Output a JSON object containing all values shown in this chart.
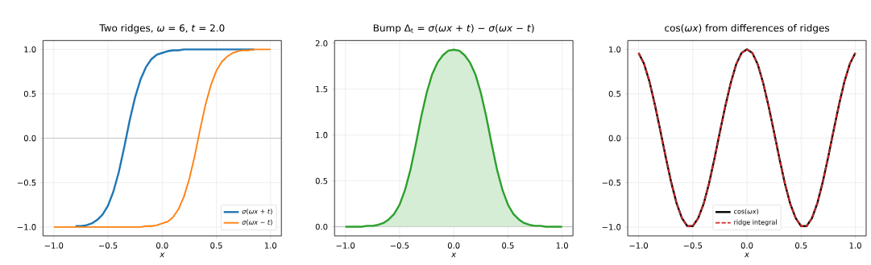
{
  "chart_data": [
    {
      "type": "line",
      "title": "Two ridges, *ω* = 6, *t* = 2.0",
      "xlabel": "x",
      "x": [
        -1.0,
        -0.95,
        -0.9,
        -0.85,
        -0.8,
        -0.75,
        -0.7,
        -0.65,
        -0.6,
        -0.55,
        -0.5,
        -0.45,
        -0.4,
        -0.35,
        -0.3,
        -0.25,
        -0.2,
        -0.15,
        -0.1,
        -0.05,
        0.0,
        0.05,
        0.1,
        0.15,
        0.2,
        0.25,
        0.3,
        0.35,
        0.4,
        0.45,
        0.5,
        0.55,
        0.6,
        0.65,
        0.7,
        0.75,
        0.8,
        0.85,
        0.9,
        0.95,
        1.0
      ],
      "series": [
        {
          "name": "*σ*(*ωx* + *t*)",
          "color": "#1f77b4",
          "values": [
            null,
            null,
            null,
            null,
            -0.99,
            -0.99,
            -0.98,
            -0.96,
            -0.92,
            -0.86,
            -0.76,
            -0.6,
            -0.38,
            -0.1,
            0.2,
            0.46,
            0.66,
            0.8,
            0.89,
            0.94,
            0.96,
            0.98,
            0.99,
            0.99,
            1.0,
            1.0,
            1.0,
            1.0,
            1.0,
            1.0,
            1.0,
            1.0,
            1.0,
            1.0,
            1.0,
            1.0,
            1.0,
            1.0,
            null,
            null,
            null
          ]
        },
        {
          "name": "*σ*(*ωx* − *t*)",
          "color": "#ff7f0e",
          "values": [
            -1.0,
            -1.0,
            -1.0,
            -1.0,
            -1.0,
            -1.0,
            -1.0,
            -1.0,
            -1.0,
            -1.0,
            -1.0,
            -1.0,
            -1.0,
            -1.0,
            -1.0,
            -1.0,
            -1.0,
            -0.99,
            -0.99,
            -0.98,
            -0.96,
            -0.94,
            -0.89,
            -0.8,
            -0.66,
            -0.46,
            -0.2,
            0.1,
            0.38,
            0.6,
            0.76,
            0.86,
            0.92,
            0.96,
            0.98,
            0.99,
            0.99,
            1.0,
            1.0,
            1.0,
            1.0
          ]
        }
      ],
      "xlim": [
        -1.1,
        1.1
      ],
      "ylim": [
        -1.1,
        1.1
      ],
      "xticks": [
        {
          "value": -1,
          "label": "−1.0"
        },
        {
          "value": -0.5,
          "label": "−0.5"
        },
        {
          "value": 0,
          "label": "0.0"
        },
        {
          "value": 0.5,
          "label": "0.5"
        },
        {
          "value": 1,
          "label": "1.0"
        }
      ],
      "yticks": [
        {
          "value": -1,
          "label": "−1.0"
        },
        {
          "value": -0.5,
          "label": "−0.5"
        },
        {
          "value": 0,
          "label": "0.0"
        },
        {
          "value": 0.5,
          "label": "0.5"
        },
        {
          "value": 1,
          "label": "1.0"
        }
      ],
      "ref_lines": [
        {
          "axis": "y",
          "value": 0,
          "color": "#999999"
        }
      ],
      "grid": true,
      "legend": "bottom right"
    },
    {
      "type": "area",
      "title": "Bump Δ$_{t}$ = *σ*(*ωx* + *t*) − *σ*(*ωx* − *t*)",
      "xlabel": "x",
      "x": [
        -1.0,
        -0.95,
        -0.9,
        -0.85,
        -0.8,
        -0.75,
        -0.7,
        -0.65,
        -0.6,
        -0.55,
        -0.5,
        -0.45,
        -0.4,
        -0.35,
        -0.3,
        -0.25,
        -0.2,
        -0.15,
        -0.1,
        -0.05,
        0.0,
        0.05,
        0.1,
        0.15,
        0.2,
        0.25,
        0.3,
        0.35,
        0.4,
        0.45,
        0.5,
        0.55,
        0.6,
        0.65,
        0.7,
        0.75,
        0.8,
        0.85,
        0.9,
        0.95,
        1.0
      ],
      "series": [
        {
          "color": "#2ca02c",
          "values": [
            0.0,
            0.0,
            0.0,
            0.0,
            0.01,
            0.01,
            0.02,
            0.04,
            0.08,
            0.14,
            0.24,
            0.4,
            0.62,
            0.9,
            1.2,
            1.46,
            1.66,
            1.79,
            1.87,
            1.92,
            1.93,
            1.92,
            1.87,
            1.79,
            1.66,
            1.46,
            1.2,
            0.9,
            0.62,
            0.4,
            0.24,
            0.14,
            0.08,
            0.04,
            0.02,
            0.01,
            0.01,
            0.0,
            0.0,
            0.0,
            0.0
          ]
        }
      ],
      "xlim": [
        -1.1,
        1.1
      ],
      "ylim": [
        -0.1,
        2.03
      ],
      "xticks": [
        {
          "value": -1,
          "label": "−1.0"
        },
        {
          "value": -0.5,
          "label": "−0.5"
        },
        {
          "value": 0,
          "label": "0.0"
        },
        {
          "value": 0.5,
          "label": "0.5"
        },
        {
          "value": 1,
          "label": "1.0"
        }
      ],
      "yticks": [
        {
          "value": 0,
          "label": "0.0"
        },
        {
          "value": 0.5,
          "label": "0.5"
        },
        {
          "value": 1,
          "label": "1.0"
        },
        {
          "value": 1.5,
          "label": "1.5"
        },
        {
          "value": 2,
          "label": "2.0"
        }
      ],
      "ref_lines": [
        {
          "axis": "y",
          "value": 0,
          "color": "#999999"
        }
      ],
      "grid": true
    },
    {
      "type": "line",
      "title": "cos(*ωx*) from differences of ridges",
      "xlabel": "x",
      "x": [
        -1.0,
        -0.95,
        -0.9,
        -0.85,
        -0.8,
        -0.75,
        -0.7,
        -0.65,
        -0.6,
        -0.55,
        -0.5,
        -0.45,
        -0.4,
        -0.35,
        -0.3,
        -0.25,
        -0.2,
        -0.15,
        -0.1,
        -0.05,
        0.0,
        0.05,
        0.1,
        0.15,
        0.2,
        0.25,
        0.3,
        0.35,
        0.4,
        0.45,
        0.5,
        0.55,
        0.6,
        0.65,
        0.7,
        0.75,
        0.8,
        0.85,
        0.9,
        0.95,
        1.0
      ],
      "series": [
        {
          "name": "cos(*ωx*)",
          "color": "#000000",
          "values": [
            0.96,
            0.84,
            0.64,
            0.38,
            0.09,
            -0.21,
            -0.49,
            -0.73,
            -0.9,
            -0.99,
            -0.99,
            -0.9,
            -0.74,
            -0.51,
            -0.23,
            0.07,
            0.36,
            0.62,
            0.83,
            0.96,
            1.0,
            0.96,
            0.83,
            0.62,
            0.36,
            0.07,
            -0.23,
            -0.51,
            -0.74,
            -0.9,
            -0.99,
            -0.99,
            -0.9,
            -0.73,
            -0.49,
            -0.21,
            0.09,
            0.38,
            0.64,
            0.84,
            0.96
          ]
        },
        {
          "name": "ridge integral",
          "color": "#d62728",
          "line_style": "dashed",
          "values": [
            0.96,
            0.84,
            0.64,
            0.38,
            0.09,
            -0.21,
            -0.49,
            -0.73,
            -0.9,
            -0.99,
            -0.99,
            -0.9,
            -0.74,
            -0.51,
            -0.23,
            0.07,
            0.36,
            0.62,
            0.83,
            0.96,
            1.0,
            0.96,
            0.83,
            0.62,
            0.36,
            0.07,
            -0.23,
            -0.51,
            -0.74,
            -0.9,
            -0.99,
            -0.99,
            -0.9,
            -0.73,
            -0.49,
            -0.21,
            0.09,
            0.38,
            0.64,
            0.84,
            0.96
          ]
        }
      ],
      "xlim": [
        -1.1,
        1.1
      ],
      "ylim": [
        -1.1,
        1.1
      ],
      "xticks": [
        {
          "value": -1,
          "label": "−1.0"
        },
        {
          "value": -0.5,
          "label": "−0.5"
        },
        {
          "value": 0,
          "label": "0.0"
        },
        {
          "value": 0.5,
          "label": "0.5"
        },
        {
          "value": 1,
          "label": "1.0"
        }
      ],
      "yticks": [
        {
          "value": -1,
          "label": "−1.0"
        },
        {
          "value": -0.5,
          "label": "−0.5"
        },
        {
          "value": 0,
          "label": "0.0"
        },
        {
          "value": 0.5,
          "label": "0.5"
        },
        {
          "value": 1,
          "label": "1.0"
        }
      ],
      "grid": true,
      "legend": "bottom"
    }
  ]
}
